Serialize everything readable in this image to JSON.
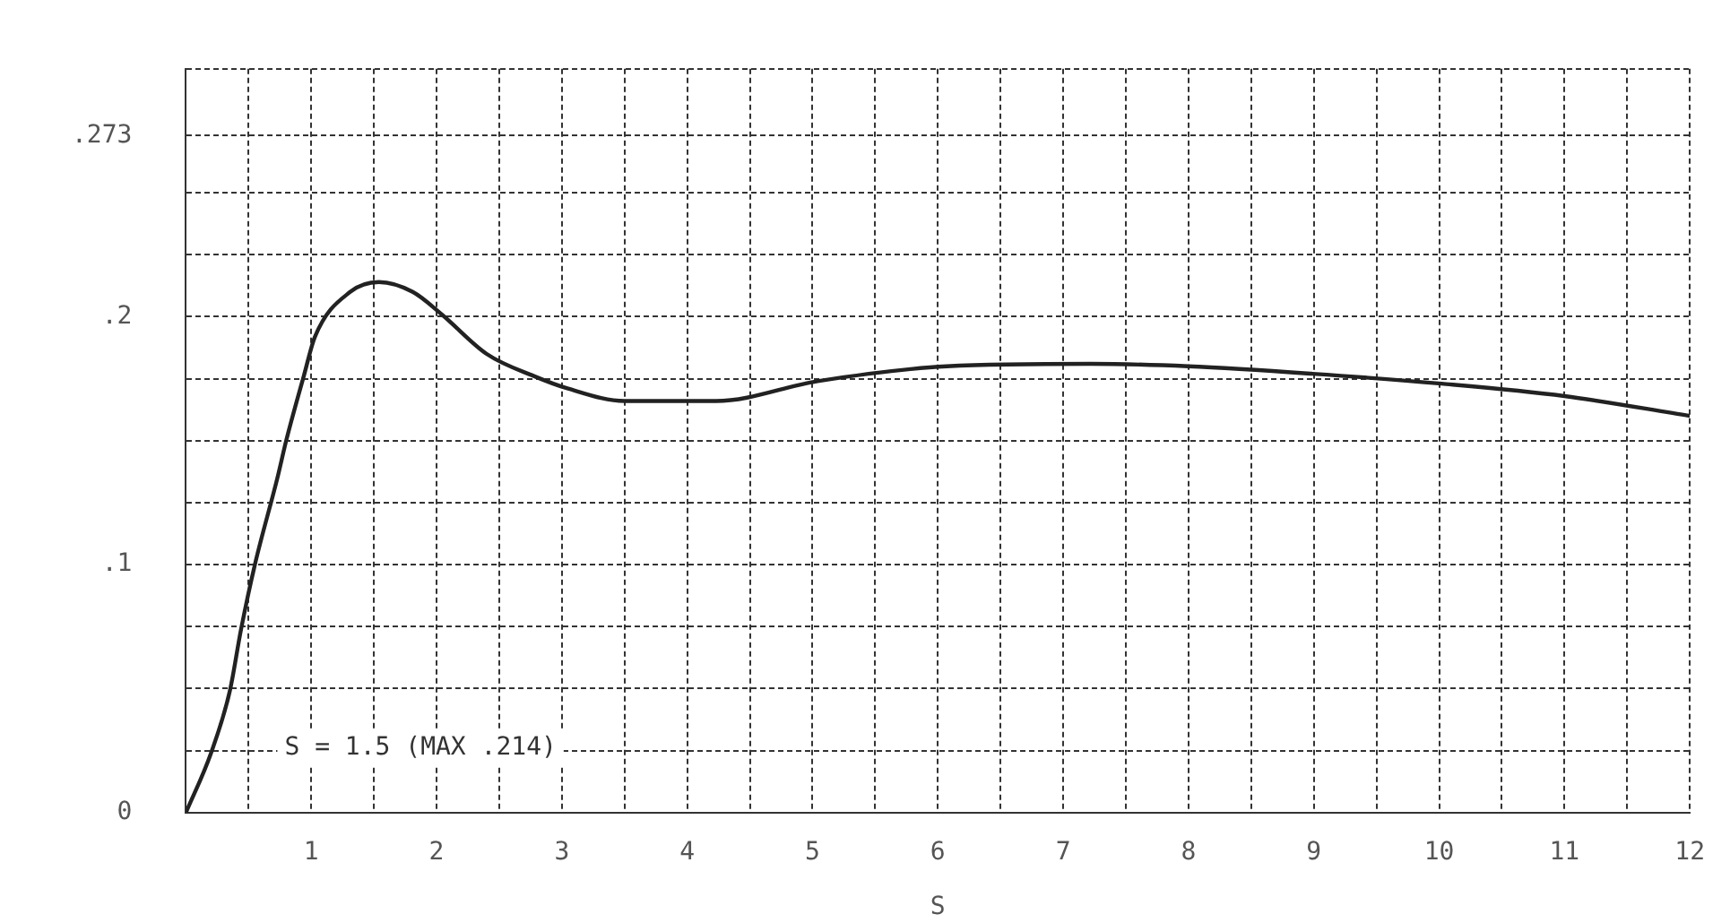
{
  "chart_data": {
    "type": "line",
    "xlabel": "S",
    "color": "#222222",
    "marker": "none",
    "legend": false,
    "grid": true,
    "x": [
      0,
      0.2,
      0.35,
      0.44,
      0.55,
      0.73,
      0.8,
      0.94,
      1.03,
      1.31,
      1.54,
      1.81,
      2.04,
      2.4,
      2.78,
      3.05,
      3.5,
      4.23,
      5.04,
      6.07,
      7.22,
      8.0,
      8.99,
      10.02,
      11.0,
      12
    ],
    "values": [
      0,
      0.024,
      0.049,
      0.074,
      0.1,
      0.135,
      0.15,
      0.176,
      0.192,
      0.21,
      0.214,
      0.21,
      0.201,
      0.185,
      0.176,
      0.171,
      0.166,
      0.166,
      0.174,
      0.18,
      0.181,
      0.18,
      0.177,
      0.173,
      0.168,
      0.16
    ],
    "xlim": [
      0,
      12
    ],
    "ylim": [
      0,
      0.3
    ],
    "xticks": [
      {
        "value": 0,
        "label": null
      },
      {
        "value": 0.5,
        "label": null
      },
      1,
      {
        "value": 1.5,
        "label": null
      },
      2,
      {
        "value": 2.5,
        "label": null
      },
      3,
      {
        "value": 3.5,
        "label": null
      },
      4,
      {
        "value": 4.5,
        "label": null
      },
      5,
      {
        "value": 5.5,
        "label": null
      },
      6,
      {
        "value": 6.5,
        "label": null
      },
      7,
      {
        "value": 7.5,
        "label": null
      },
      8,
      {
        "value": 8.5,
        "label": null
      },
      9,
      {
        "value": 9.5,
        "label": null
      },
      10,
      {
        "value": 10.5,
        "label": null
      },
      11,
      {
        "value": 11.5,
        "label": null
      },
      12
    ],
    "yticks": [
      {
        "value": 0,
        "label": "0"
      },
      {
        "value": 0.025,
        "label": null
      },
      {
        "value": 0.05,
        "label": null
      },
      {
        "value": 0.075,
        "label": null
      },
      {
        "value": 0.1,
        "label": ".1"
      },
      {
        "value": 0.125,
        "label": null
      },
      {
        "value": 0.15,
        "label": null
      },
      {
        "value": 0.175,
        "label": null
      },
      {
        "value": 0.2,
        "label": ".2"
      },
      {
        "value": 0.225,
        "label": null
      },
      {
        "value": 0.25,
        "label": null
      },
      {
        "value": 0.273,
        "label": ".273"
      },
      {
        "value": 0.3,
        "label": null
      }
    ],
    "annotations": [
      "S = 1.5 (MAX .214)"
    ]
  }
}
